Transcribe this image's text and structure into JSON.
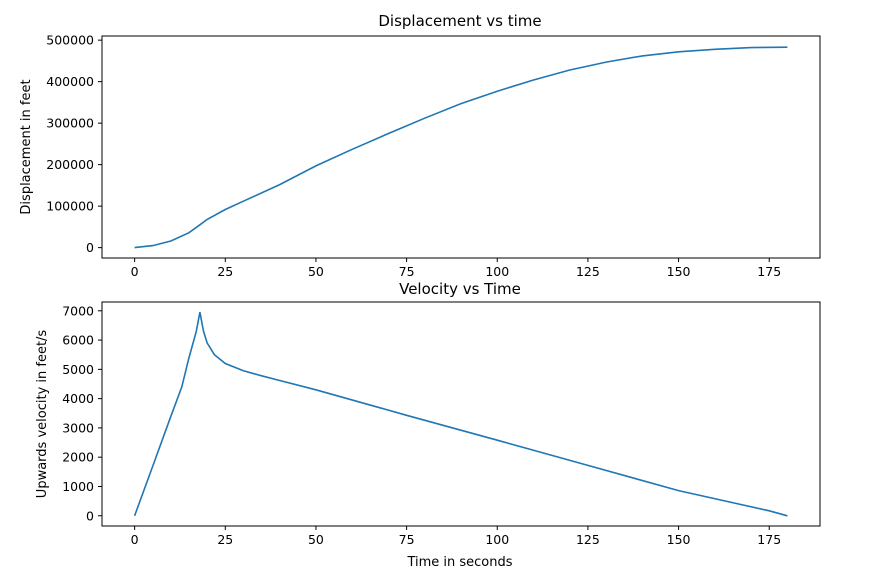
{
  "chart_data": [
    {
      "type": "line",
      "title": "Displacement vs time",
      "xlabel": "",
      "ylabel": "Displacement in feet",
      "xlim": [
        -9,
        189
      ],
      "ylim": [
        -25000,
        510000
      ],
      "xticks": [
        0,
        25,
        50,
        75,
        100,
        125,
        150,
        175
      ],
      "yticks": [
        0,
        100000,
        200000,
        300000,
        400000,
        500000
      ],
      "line_color": "#1f77b4",
      "grid": false,
      "series": [
        {
          "x": [
            0,
            5,
            10,
            15,
            18,
            20,
            25,
            30,
            40,
            50,
            60,
            70,
            80,
            90,
            100,
            110,
            120,
            130,
            140,
            150,
            160,
            170,
            180
          ],
          "y": [
            0,
            5000,
            16000,
            36000,
            55000,
            68000,
            92000,
            112000,
            152000,
            197000,
            237000,
            275000,
            312000,
            347000,
            377000,
            404000,
            428000,
            447000,
            462000,
            472000,
            478000,
            482000,
            483000
          ]
        }
      ]
    },
    {
      "type": "line",
      "title": "Velocity vs Time",
      "xlabel": "Time in seconds",
      "ylabel": "Upwards velocity in feet/s",
      "xlim": [
        -9,
        189
      ],
      "ylim": [
        -350,
        7300
      ],
      "xticks": [
        0,
        25,
        50,
        75,
        100,
        125,
        150,
        175
      ],
      "yticks": [
        0,
        1000,
        2000,
        3000,
        4000,
        5000,
        6000,
        7000
      ],
      "line_color": "#1f77b4",
      "grid": false,
      "series": [
        {
          "x": [
            0,
            5,
            10,
            13,
            15,
            17,
            18,
            19,
            20,
            22,
            25,
            30,
            35,
            40,
            50,
            75,
            100,
            125,
            150,
            175,
            180
          ],
          "y": [
            0,
            1700,
            3400,
            4400,
            5400,
            6300,
            6950,
            6300,
            5900,
            5500,
            5200,
            4950,
            4780,
            4620,
            4300,
            3430,
            2580,
            1720,
            860,
            170,
            0
          ]
        }
      ]
    }
  ]
}
